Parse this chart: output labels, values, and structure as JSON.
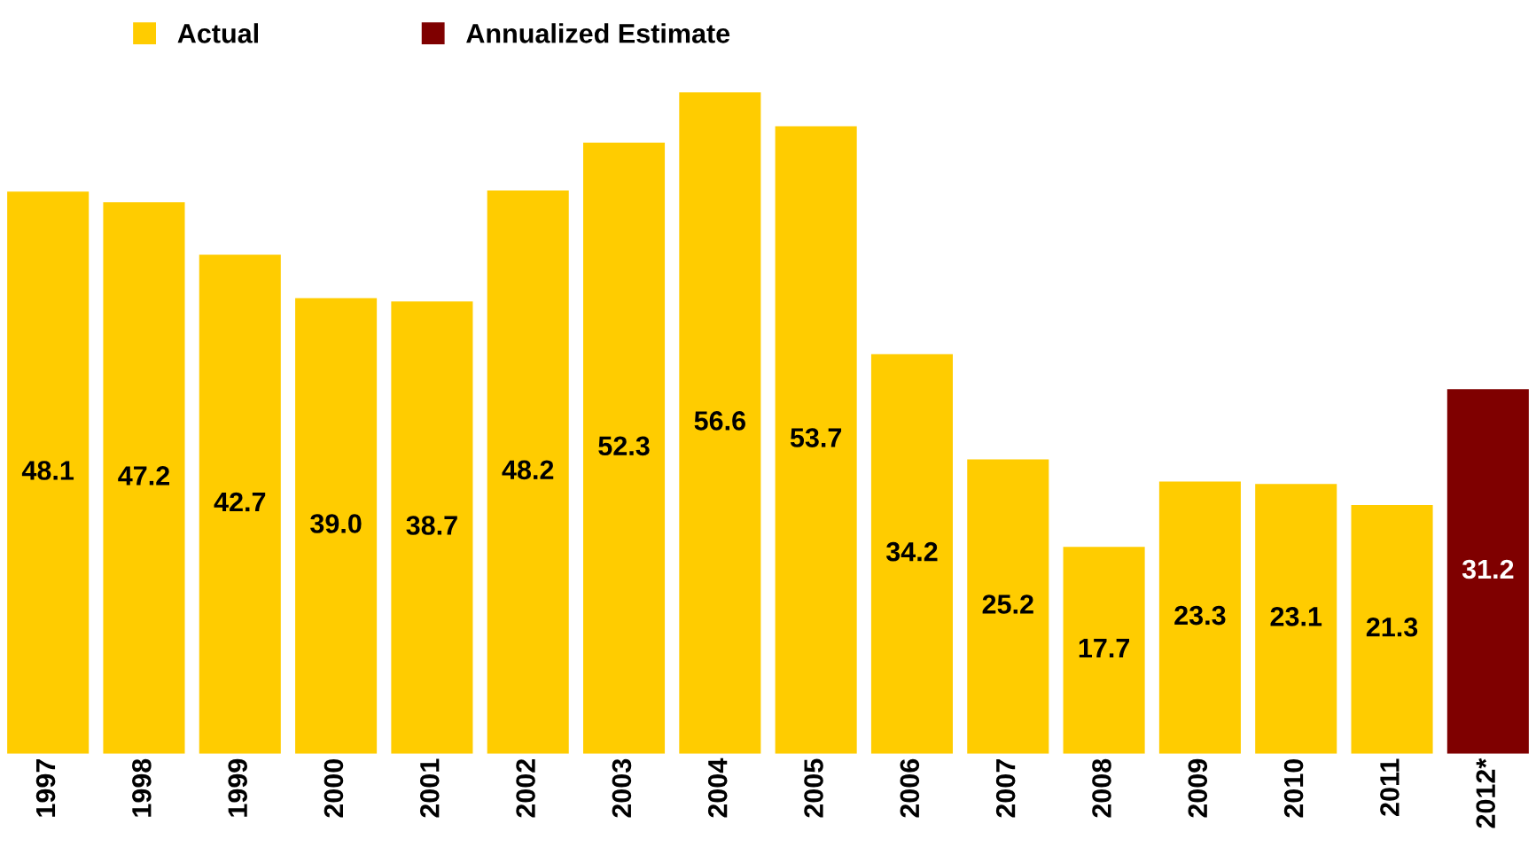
{
  "chart_data": {
    "type": "bar",
    "categories": [
      "1997",
      "1998",
      "1999",
      "2000",
      "2001",
      "2002",
      "2003",
      "2004",
      "2005",
      "2006",
      "2007",
      "2008",
      "2009",
      "2010",
      "2011",
      "2012*"
    ],
    "series": [
      {
        "name": "Actual",
        "color": "#ffcc00",
        "values": [
          48.1,
          47.2,
          42.7,
          39.0,
          38.7,
          48.2,
          52.3,
          56.6,
          53.7,
          34.2,
          25.2,
          17.7,
          23.3,
          23.1,
          21.3,
          null
        ],
        "value_labels": [
          "48.1",
          "47.2",
          "42.7",
          "39.0",
          "38.7",
          "48.2",
          "52.3",
          "56.6",
          "53.7",
          "34.2",
          "25.2",
          "17.7",
          "23.3",
          "23.1",
          "21.3",
          null
        ]
      },
      {
        "name": "Annualized Estimate",
        "color": "#7f0000",
        "values": [
          null,
          null,
          null,
          null,
          null,
          null,
          null,
          null,
          null,
          null,
          null,
          null,
          null,
          null,
          null,
          31.2
        ],
        "value_labels": [
          null,
          null,
          null,
          null,
          null,
          null,
          null,
          null,
          null,
          null,
          null,
          null,
          null,
          null,
          null,
          "31.2"
        ]
      }
    ],
    "stacked": true,
    "legend": "top left",
    "grid": false,
    "tick_labels": "x"
  }
}
